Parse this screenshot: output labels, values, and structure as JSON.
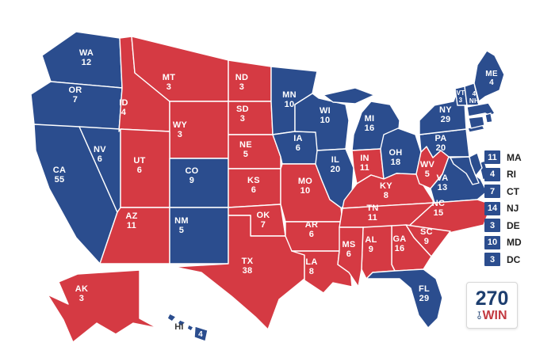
{
  "map": {
    "colors": {
      "dem": "#2b4d8e",
      "rep": "#d53a43",
      "state_label": "#ffffff",
      "outside_label": "#3a3a3a",
      "border": "#ffffff"
    },
    "states": [
      {
        "id": "WA",
        "abbr": "WA",
        "votes": 12,
        "party": "dem"
      },
      {
        "id": "OR",
        "abbr": "OR",
        "votes": 7,
        "party": "dem"
      },
      {
        "id": "CA",
        "abbr": "CA",
        "votes": 55,
        "party": "dem"
      },
      {
        "id": "NV",
        "abbr": "NV",
        "votes": 6,
        "party": "dem"
      },
      {
        "id": "ID",
        "abbr": "ID",
        "votes": 4,
        "party": "rep"
      },
      {
        "id": "MT",
        "abbr": "MT",
        "votes": 3,
        "party": "rep"
      },
      {
        "id": "WY",
        "abbr": "WY",
        "votes": 3,
        "party": "rep"
      },
      {
        "id": "UT",
        "abbr": "UT",
        "votes": 6,
        "party": "rep"
      },
      {
        "id": "CO",
        "abbr": "CO",
        "votes": 9,
        "party": "dem"
      },
      {
        "id": "AZ",
        "abbr": "AZ",
        "votes": 11,
        "party": "rep"
      },
      {
        "id": "NM",
        "abbr": "NM",
        "votes": 5,
        "party": "dem"
      },
      {
        "id": "ND",
        "abbr": "ND",
        "votes": 3,
        "party": "rep"
      },
      {
        "id": "SD",
        "abbr": "SD",
        "votes": 3,
        "party": "rep"
      },
      {
        "id": "NE",
        "abbr": "NE",
        "votes": 5,
        "party": "rep"
      },
      {
        "id": "KS",
        "abbr": "KS",
        "votes": 6,
        "party": "rep"
      },
      {
        "id": "OK",
        "abbr": "OK",
        "votes": 7,
        "party": "rep"
      },
      {
        "id": "TX",
        "abbr": "TX",
        "votes": 38,
        "party": "rep"
      },
      {
        "id": "MN",
        "abbr": "MN",
        "votes": 10,
        "party": "dem"
      },
      {
        "id": "IA",
        "abbr": "IA",
        "votes": 6,
        "party": "dem"
      },
      {
        "id": "MO",
        "abbr": "MO",
        "votes": 10,
        "party": "rep"
      },
      {
        "id": "AR",
        "abbr": "AR",
        "votes": 6,
        "party": "rep"
      },
      {
        "id": "LA",
        "abbr": "LA",
        "votes": 8,
        "party": "rep"
      },
      {
        "id": "WI",
        "abbr": "WI",
        "votes": 10,
        "party": "dem"
      },
      {
        "id": "IL",
        "abbr": "IL",
        "votes": 20,
        "party": "dem"
      },
      {
        "id": "MI",
        "abbr": "MI",
        "votes": 16,
        "party": "dem"
      },
      {
        "id": "IN",
        "abbr": "IN",
        "votes": 11,
        "party": "rep"
      },
      {
        "id": "OH",
        "abbr": "OH",
        "votes": 18,
        "party": "dem"
      },
      {
        "id": "KY",
        "abbr": "KY",
        "votes": 8,
        "party": "rep"
      },
      {
        "id": "TN",
        "abbr": "TN",
        "votes": 11,
        "party": "rep"
      },
      {
        "id": "WV",
        "abbr": "WV",
        "votes": 5,
        "party": "rep"
      },
      {
        "id": "VA",
        "abbr": "VA",
        "votes": 13,
        "party": "dem"
      },
      {
        "id": "NC",
        "abbr": "NC",
        "votes": 15,
        "party": "rep"
      },
      {
        "id": "SC",
        "abbr": "SC",
        "votes": 9,
        "party": "rep"
      },
      {
        "id": "GA",
        "abbr": "GA",
        "votes": 16,
        "party": "rep"
      },
      {
        "id": "AL",
        "abbr": "AL",
        "votes": 9,
        "party": "rep"
      },
      {
        "id": "MS",
        "abbr": "MS",
        "votes": 6,
        "party": "rep"
      },
      {
        "id": "FL",
        "abbr": "FL",
        "votes": 29,
        "party": "dem"
      },
      {
        "id": "PA",
        "abbr": "PA",
        "votes": 20,
        "party": "dem"
      },
      {
        "id": "NY",
        "abbr": "NY",
        "votes": 29,
        "party": "dem"
      },
      {
        "id": "VT",
        "abbr": "VT",
        "votes": 3,
        "party": "dem"
      },
      {
        "id": "NH",
        "abbr": "NH",
        "votes": 4,
        "party": "dem"
      },
      {
        "id": "ME",
        "abbr": "ME",
        "votes": 4,
        "party": "dem"
      },
      {
        "id": "MA",
        "abbr": "MA",
        "votes": 11,
        "party": "dem"
      },
      {
        "id": "RI",
        "abbr": "RI",
        "votes": 4,
        "party": "dem"
      },
      {
        "id": "CT",
        "abbr": "CT",
        "votes": 7,
        "party": "dem"
      },
      {
        "id": "NJ",
        "abbr": "NJ",
        "votes": 14,
        "party": "dem"
      },
      {
        "id": "DE",
        "abbr": "DE",
        "votes": 3,
        "party": "dem"
      },
      {
        "id": "MD",
        "abbr": "MD",
        "votes": 10,
        "party": "dem"
      },
      {
        "id": "DC",
        "abbr": "DC",
        "votes": 3,
        "party": "dem"
      },
      {
        "id": "AK",
        "abbr": "AK",
        "votes": 3,
        "party": "rep"
      },
      {
        "id": "HI",
        "abbr": "HI",
        "votes": 4,
        "party": "dem"
      }
    ]
  },
  "legend": {
    "items": [
      "MA",
      "RI",
      "CT",
      "NJ",
      "DE",
      "MD",
      "DC"
    ]
  },
  "logo": {
    "number": "270",
    "to": "TO",
    "win": "WIN",
    "navy": "#1d3e6f",
    "red": "#c33a41"
  }
}
